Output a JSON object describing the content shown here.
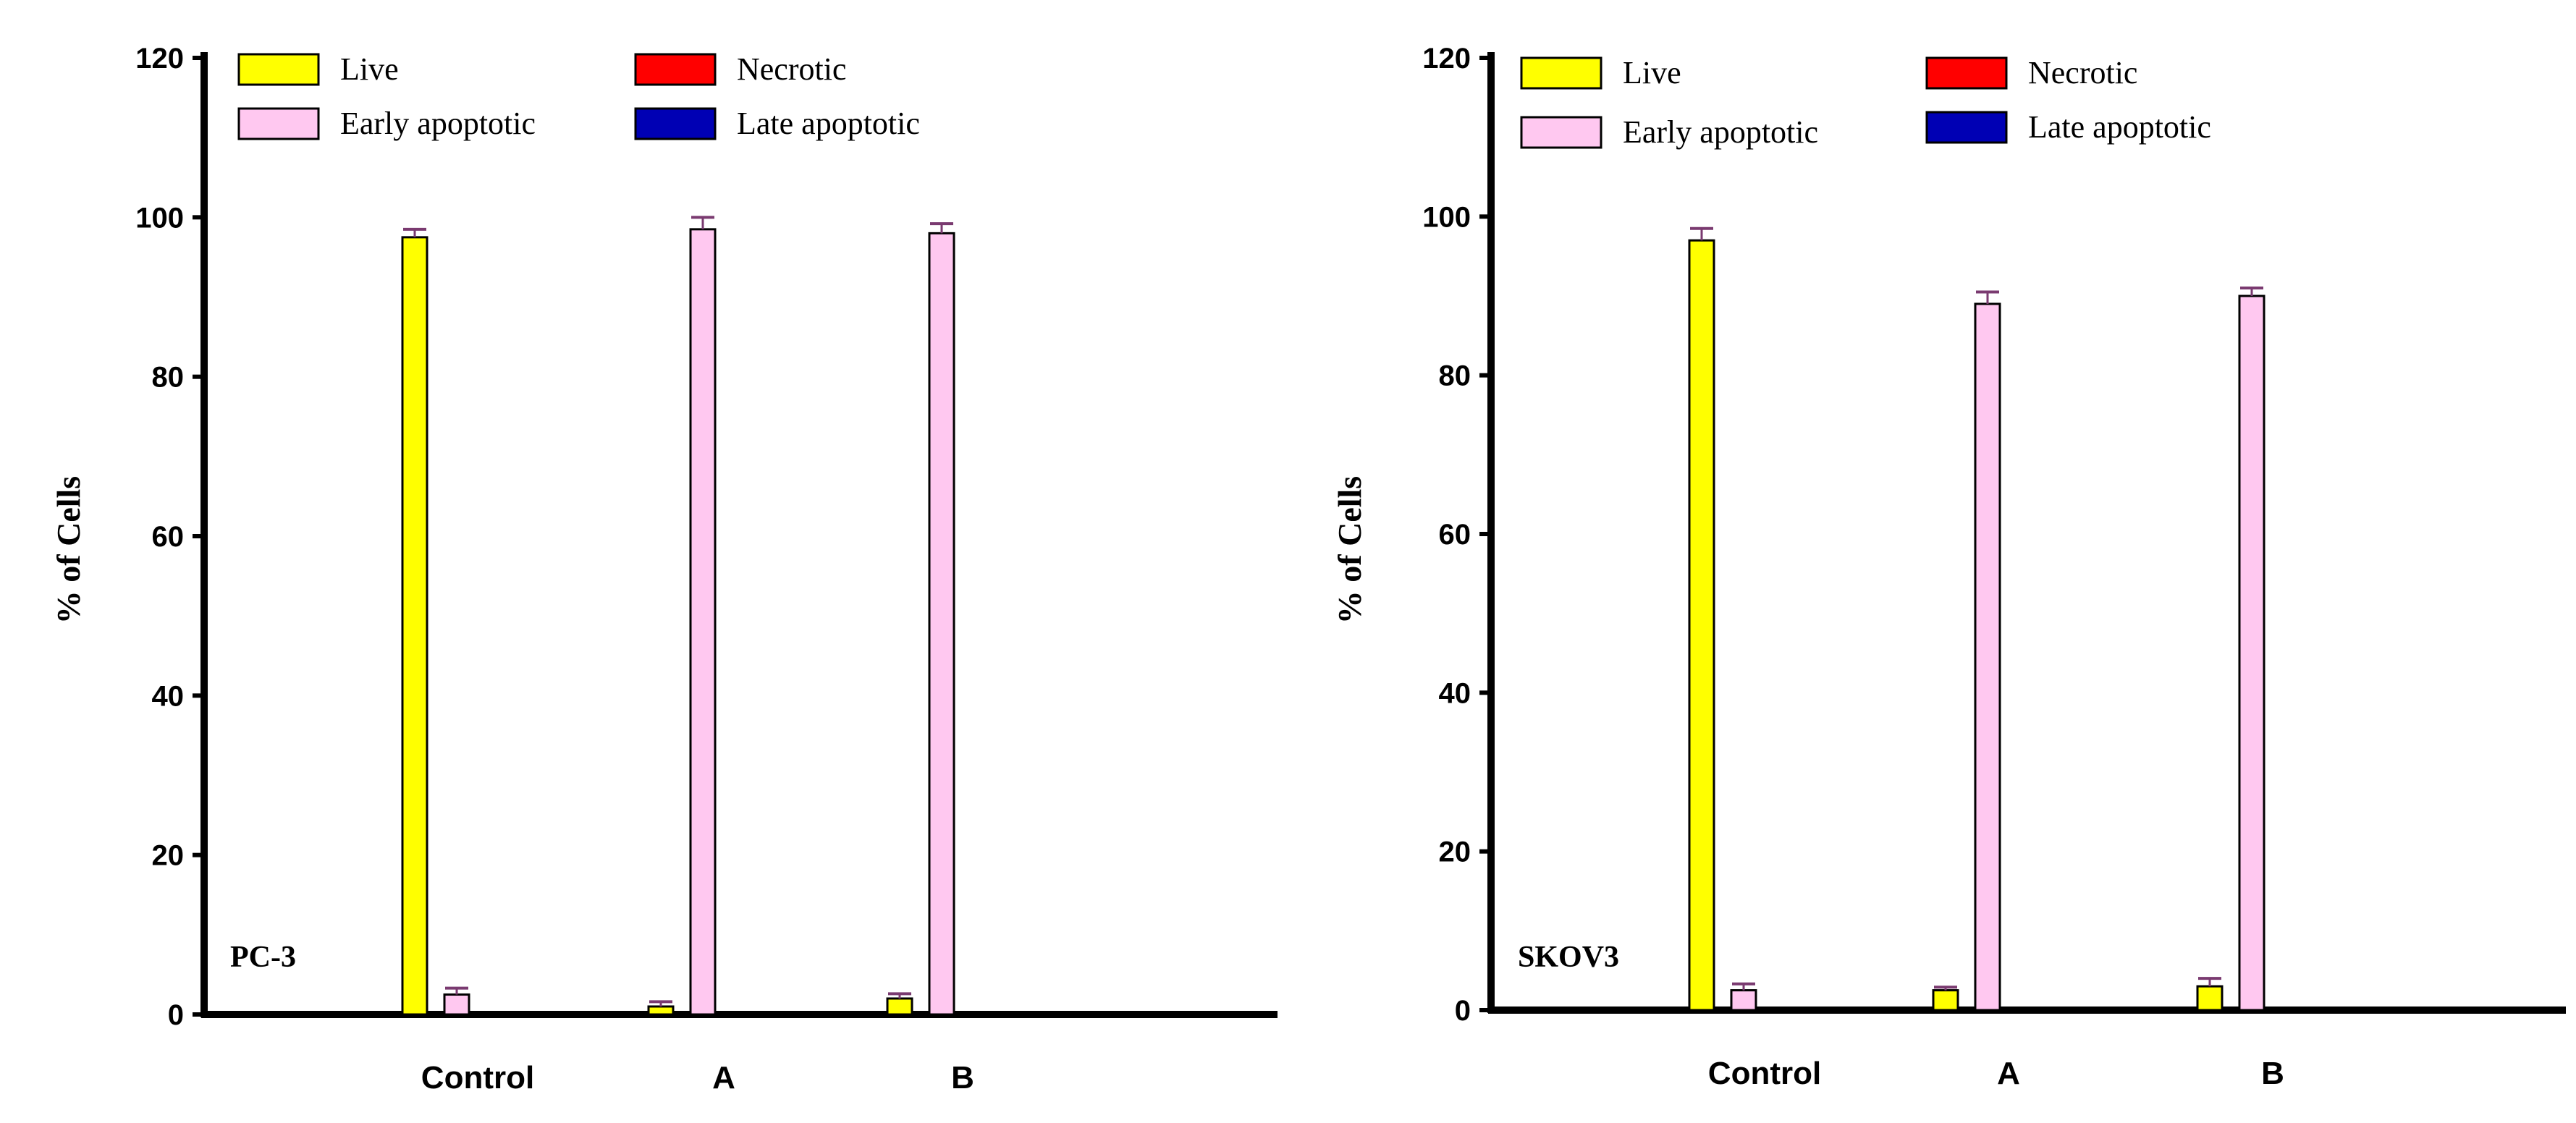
{
  "chart_data": [
    {
      "type": "bar",
      "panel_label": "PC-3",
      "ylabel": "% of Cells",
      "xlabel": "",
      "ylim": [
        0,
        120
      ],
      "yticks": [
        "0",
        "20",
        "40",
        "60",
        "80",
        "100",
        "120"
      ],
      "categories": [
        "Control",
        "A",
        "B"
      ],
      "legend_position": "top",
      "series": [
        {
          "name": "Live",
          "color": "#ffff00",
          "values": [
            97.5,
            1.0,
            2.0
          ],
          "errors": [
            1.0,
            0.6,
            0.6
          ]
        },
        {
          "name": "Early apoptotic",
          "color": "#ffc8f0",
          "values": [
            2.5,
            98.5,
            98.0
          ],
          "errors": [
            0.8,
            1.5,
            1.2
          ]
        },
        {
          "name": "Necrotic",
          "color": "#ff0000",
          "values": [
            0,
            0,
            0
          ],
          "errors": [
            0,
            0,
            0
          ]
        },
        {
          "name": "Late apoptotic",
          "color": "#0000b4",
          "values": [
            0,
            0,
            0
          ],
          "errors": [
            0,
            0,
            0
          ]
        }
      ]
    },
    {
      "type": "bar",
      "panel_label": "SKOV3",
      "ylabel": "% of Cells",
      "xlabel": "",
      "ylim": [
        0,
        120
      ],
      "yticks": [
        "0",
        "20",
        "40",
        "60",
        "80",
        "100",
        "120"
      ],
      "categories": [
        "Control",
        "A",
        "B"
      ],
      "legend_position": "top",
      "series": [
        {
          "name": "Live",
          "color": "#ffff00",
          "values": [
            97.0,
            2.5,
            3.0
          ],
          "errors": [
            1.5,
            0.4,
            1.0
          ]
        },
        {
          "name": "Early apoptotic",
          "color": "#ffc8f0",
          "values": [
            2.5,
            89.0,
            90.0
          ],
          "errors": [
            0.8,
            1.5,
            1.0
          ]
        },
        {
          "name": "Necrotic",
          "color": "#ff0000",
          "values": [
            0,
            0,
            0
          ],
          "errors": [
            0,
            0,
            0
          ]
        },
        {
          "name": "Late apoptotic",
          "color": "#0000b4",
          "values": [
            0,
            0,
            0
          ],
          "errors": [
            0,
            0,
            0
          ]
        }
      ]
    }
  ]
}
